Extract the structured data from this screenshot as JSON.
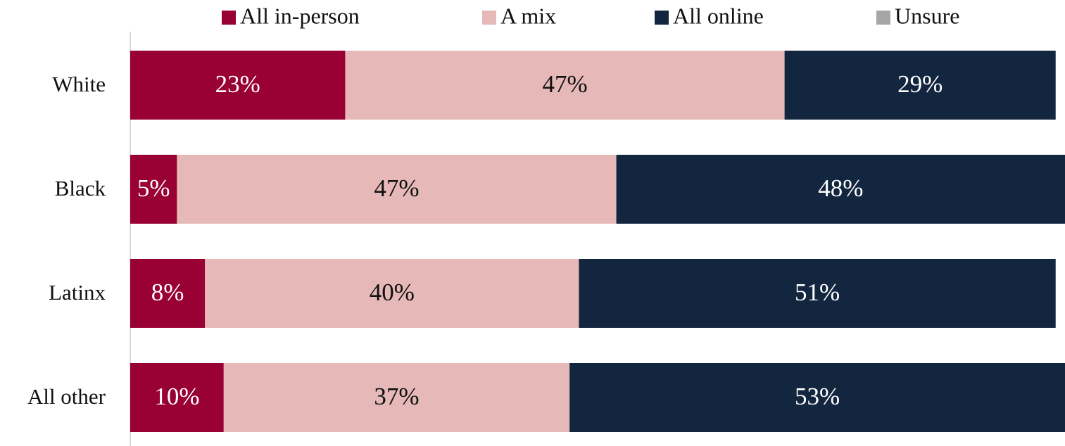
{
  "chart_data": {
    "type": "stacked_bar_horizontal",
    "categories": [
      "White",
      "Black",
      "Latinx",
      "All other"
    ],
    "series": [
      {
        "name": "All in-person",
        "color": "#990033",
        "values": [
          23,
          5,
          8,
          10
        ]
      },
      {
        "name": "A mix",
        "color": "#e6b8b7",
        "values": [
          47,
          47,
          40,
          37
        ]
      },
      {
        "name": "All online",
        "color": "#13263f",
        "values": [
          29,
          48,
          51,
          53
        ]
      },
      {
        "name": "Unsure",
        "color": "#a6a6a6",
        "values": [
          0,
          0,
          0,
          0
        ]
      }
    ],
    "value_labels": [
      [
        "23%",
        "5%",
        "8%",
        "10%"
      ],
      [
        "47%",
        "47%",
        "40%",
        "37%"
      ],
      [
        "29%",
        "48%",
        "51%",
        "53%"
      ],
      [
        null,
        null,
        null,
        null
      ]
    ],
    "xlim": [
      0,
      100
    ],
    "legend": "top"
  }
}
